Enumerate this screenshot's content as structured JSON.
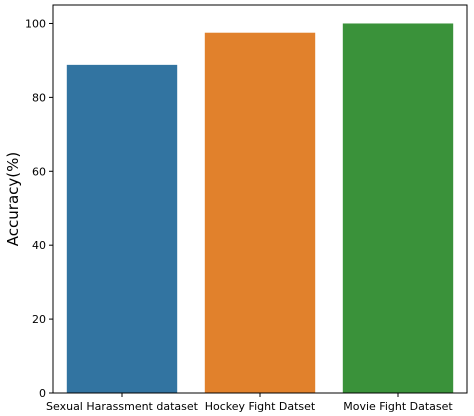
{
  "chart_data": {
    "type": "bar",
    "title": "",
    "xlabel": "",
    "ylabel": "Accuracy(%)",
    "categories": [
      "Sexual Harassment dataset",
      "Hockey Fight Datset",
      "Movie Fight Dataset"
    ],
    "values": [
      88.8,
      97.5,
      100.0
    ],
    "colors": [
      "#3274a1",
      "#e1812c",
      "#3a923a"
    ],
    "ylim": [
      0,
      105
    ],
    "yticks": [
      0,
      20,
      40,
      60,
      80,
      100
    ],
    "grid": false,
    "legend": "none"
  }
}
